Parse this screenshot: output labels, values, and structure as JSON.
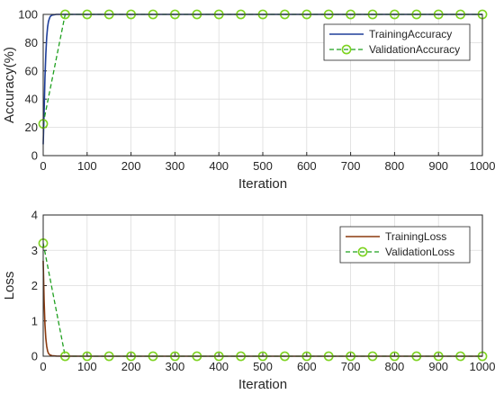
{
  "chart_data": [
    {
      "type": "line",
      "xlabel": "Iteration",
      "ylabel": "Accuracy(%)",
      "xlim": [
        0,
        1000
      ],
      "ylim": [
        0,
        100
      ],
      "xticks": [
        "0",
        "100",
        "200",
        "300",
        "400",
        "500",
        "600",
        "700",
        "800",
        "900",
        "1000"
      ],
      "yticks": [
        "0",
        "20",
        "40",
        "60",
        "80",
        "100"
      ],
      "grid": true,
      "legend_position": "top-right",
      "series": [
        {
          "name": "TrainingAccuracy",
          "color": "#1f3f9a",
          "style": "solid",
          "x": [
            0,
            2,
            4,
            6,
            8,
            10,
            12,
            14,
            16,
            20,
            30,
            50,
            100,
            200,
            300,
            400,
            500,
            600,
            700,
            800,
            900,
            1000
          ],
          "y": [
            8,
            30,
            55,
            72,
            84,
            91,
            95,
            97,
            98.5,
            99.5,
            100,
            100,
            100,
            100,
            100,
            100,
            100,
            100,
            100,
            100,
            100,
            100
          ]
        },
        {
          "name": "ValidationAccuracy",
          "color": "#1fa01f",
          "marker_color": "#7ed321",
          "style": "dashed",
          "marker": "circle",
          "x": [
            0,
            50,
            100,
            150,
            200,
            250,
            300,
            350,
            400,
            450,
            500,
            550,
            600,
            650,
            700,
            750,
            800,
            850,
            900,
            950,
            1000
          ],
          "y": [
            22.5,
            100,
            100,
            100,
            100,
            100,
            100,
            100,
            100,
            100,
            100,
            100,
            100,
            100,
            100,
            100,
            100,
            100,
            100,
            100,
            100
          ]
        }
      ]
    },
    {
      "type": "line",
      "xlabel": "Iteration",
      "ylabel": "Loss",
      "xlim": [
        0,
        1000
      ],
      "ylim": [
        0,
        4
      ],
      "xticks": [
        "0",
        "100",
        "200",
        "300",
        "400",
        "500",
        "600",
        "700",
        "800",
        "900",
        "1000"
      ],
      "yticks": [
        "0",
        "1",
        "2",
        "3",
        "4"
      ],
      "grid": true,
      "legend_position": "top-right",
      "series": [
        {
          "name": "TrainingLoss",
          "color": "#8b3a0f",
          "style": "solid",
          "x": [
            0,
            2,
            4,
            6,
            8,
            10,
            12,
            15,
            20,
            30,
            50,
            100,
            200,
            300,
            400,
            500,
            600,
            700,
            800,
            900,
            1000
          ],
          "y": [
            2.7,
            1.6,
            0.9,
            0.5,
            0.28,
            0.15,
            0.08,
            0.04,
            0.015,
            0.005,
            0.002,
            0,
            0,
            0,
            0,
            0,
            0,
            0,
            0,
            0,
            0
          ]
        },
        {
          "name": "ValidationLoss",
          "color": "#1fa01f",
          "marker_color": "#7ed321",
          "style": "dashed",
          "marker": "circle",
          "x": [
            0,
            50,
            100,
            150,
            200,
            250,
            300,
            350,
            400,
            450,
            500,
            550,
            600,
            650,
            700,
            750,
            800,
            850,
            900,
            950,
            1000
          ],
          "y": [
            3.2,
            0,
            0,
            0,
            0,
            0,
            0,
            0,
            0,
            0,
            0,
            0,
            0,
            0,
            0,
            0,
            0,
            0,
            0,
            0,
            0
          ]
        }
      ]
    }
  ]
}
